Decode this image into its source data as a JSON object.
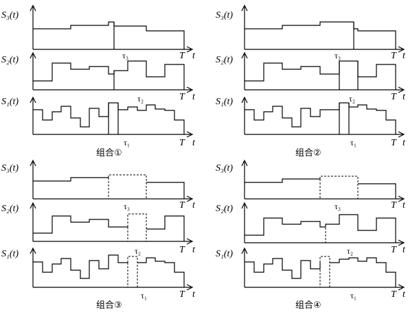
{
  "panels": [
    {
      "caption": "组合①",
      "rows": [
        {
          "ylabel": "S₃(t)",
          "tau": "τ₃",
          "t_end": "T",
          "t_axis": "t"
        },
        {
          "ylabel": "S₂(t)",
          "tau": "τ₂",
          "t_end": "T",
          "t_axis": "t"
        },
        {
          "ylabel": "S₁(t)",
          "tau": "τ₁",
          "t_end": "T",
          "t_axis": "t"
        }
      ]
    },
    {
      "caption": "组合②",
      "rows": [
        {
          "ylabel": "S₃(t)",
          "tau": "τ₃",
          "t_end": "T",
          "t_axis": "t"
        },
        {
          "ylabel": "S₂(t)",
          "tau": "τ₂",
          "t_end": "T",
          "t_axis": "t"
        },
        {
          "ylabel": "S₁(t)",
          "tau": "τ₁",
          "t_end": "T",
          "t_axis": "t"
        }
      ]
    },
    {
      "caption": "组合③",
      "rows": [
        {
          "ylabel": "S₃(t)",
          "tau": "τ₃",
          "t_end": "T",
          "t_axis": "t"
        },
        {
          "ylabel": "S₂(t)",
          "tau": "τ₂",
          "t_end": "T",
          "t_axis": "t"
        },
        {
          "ylabel": "S₁(t)",
          "tau": "τ₁",
          "t_end": "T",
          "t_axis": "t"
        }
      ]
    },
    {
      "caption": "组合④",
      "rows": [
        {
          "ylabel": "S₃(t)",
          "tau": "τ₃",
          "t_end": "T",
          "t_axis": "t"
        },
        {
          "ylabel": "S₂(t)",
          "tau": "τ₂",
          "t_end": "T",
          "t_axis": "t"
        },
        {
          "ylabel": "S₁(t)",
          "tau": "τ₁",
          "t_end": "T",
          "t_axis": "t"
        }
      ]
    }
  ]
}
